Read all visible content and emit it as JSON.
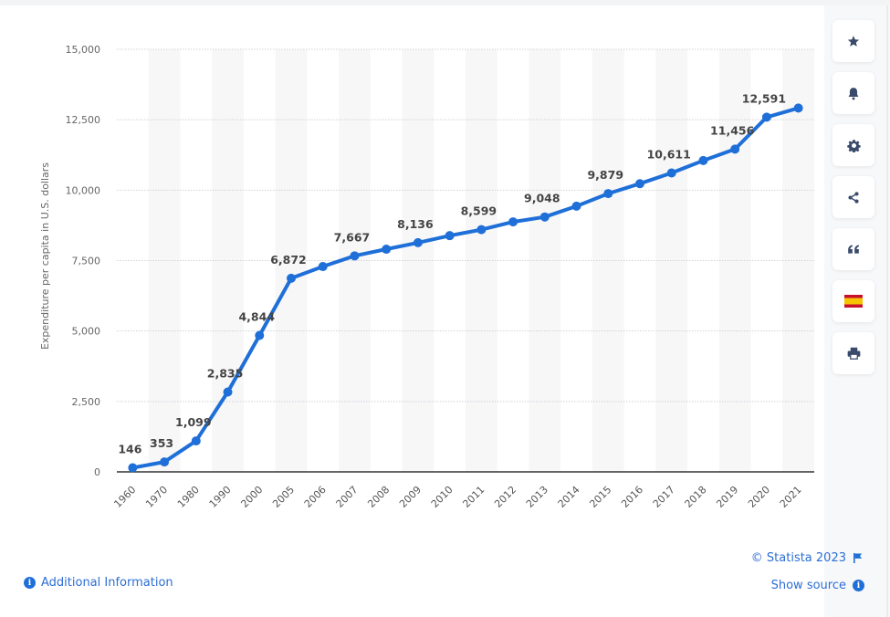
{
  "chart_data": {
    "type": "line",
    "title": "",
    "xlabel": "",
    "ylabel": "Expenditure per capita in U.S. dollars",
    "ylim": [
      0,
      15000
    ],
    "yticks": [
      0,
      2500,
      5000,
      7500,
      10000,
      12500,
      15000
    ],
    "ytick_labels": [
      "0",
      "2,500",
      "5,000",
      "7,500",
      "10,000",
      "12,500",
      "15,000"
    ],
    "grid": "horizontal-dotted",
    "legend": "none",
    "categories": [
      "1960",
      "1970",
      "1980",
      "1990",
      "2000",
      "2005",
      "2006",
      "2007",
      "2008",
      "2009",
      "2010",
      "2011",
      "2012",
      "2013",
      "2014",
      "2015",
      "2016",
      "2017",
      "2018",
      "2019",
      "2020",
      "2021"
    ],
    "series": [
      {
        "name": "Expenditure per capita",
        "color": "#1f6fd8",
        "values": [
          146,
          353,
          1099,
          2835,
          4844,
          6872,
          7288,
          7667,
          7904,
          8136,
          8386,
          8599,
          8874,
          9048,
          9432,
          9879,
          10230,
          10611,
          11052,
          11456,
          12591,
          12914
        ],
        "data_labels": [
          "146",
          "353",
          "1,099",
          "2,835",
          "4,844",
          "6,872",
          "",
          "7,667",
          "",
          "8,136",
          "",
          "8,599",
          "",
          "9,048",
          "",
          "9,879",
          "",
          "10,611",
          "",
          "11,456",
          "12,591",
          ""
        ]
      }
    ]
  },
  "toolbar": {
    "buttons": [
      {
        "name": "favorite",
        "icon": "star-icon"
      },
      {
        "name": "notification",
        "icon": "bell-icon"
      },
      {
        "name": "settings",
        "icon": "gear-icon"
      },
      {
        "name": "share",
        "icon": "share-icon"
      },
      {
        "name": "cite",
        "icon": "quote-icon"
      },
      {
        "name": "language",
        "icon": "spain-flag-icon"
      },
      {
        "name": "print",
        "icon": "printer-icon"
      }
    ]
  },
  "footer": {
    "additional_info": "Additional Information",
    "copyright": "© Statista 2023",
    "show_source": "Show source",
    "info_glyph": "i"
  },
  "colors": {
    "line": "#1f6fd8",
    "link": "#2c6ed5",
    "icon": "#3a4a6b"
  }
}
